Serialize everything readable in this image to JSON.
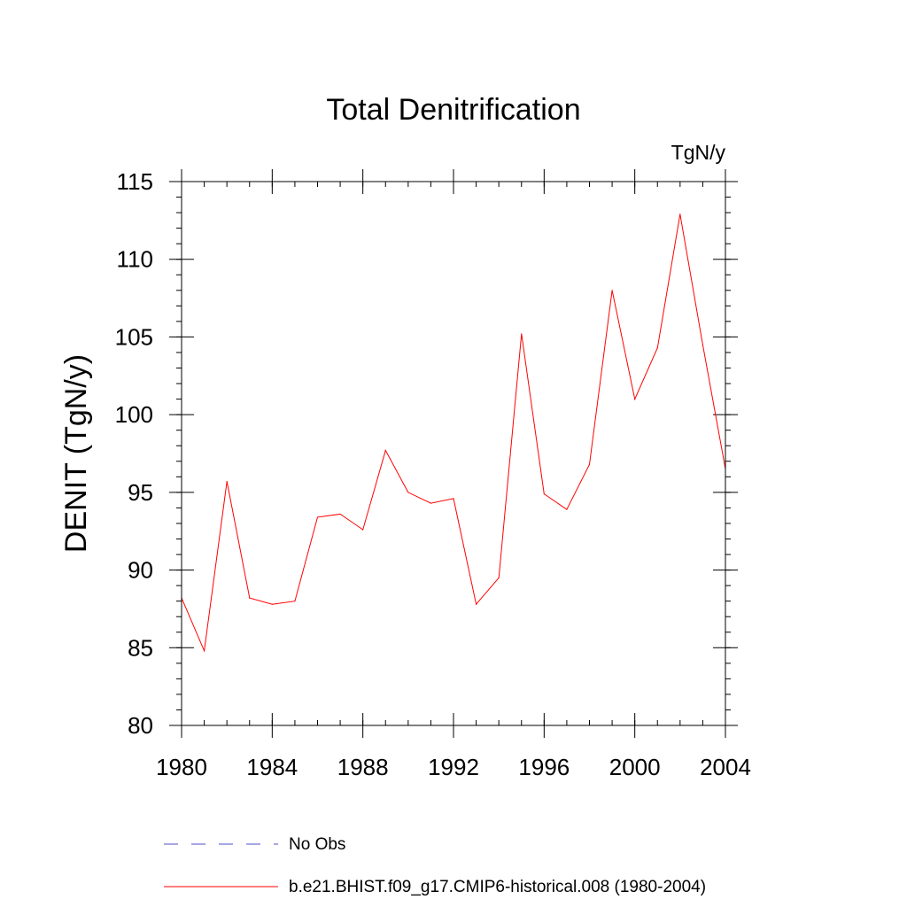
{
  "chart_data": {
    "type": "line",
    "title": "Total Denitrification",
    "units": "TgN/y",
    "ylabel": "DENIT  (TgN/y)",
    "xlabel": "",
    "xlim": [
      1980,
      2004
    ],
    "ylim": [
      80,
      115
    ],
    "x_ticks": [
      "1980",
      "1984",
      "1988",
      "1992",
      "1996",
      "2000",
      "2004"
    ],
    "y_ticks": [
      "80",
      "85",
      "90",
      "95",
      "100",
      "105",
      "110",
      "115"
    ],
    "x": [
      1980,
      1981,
      1982,
      1983,
      1984,
      1985,
      1986,
      1987,
      1988,
      1989,
      1990,
      1991,
      1992,
      1993,
      1994,
      1995,
      1996,
      1997,
      1998,
      1999,
      2000,
      2001,
      2002,
      2003,
      2004
    ],
    "series": [
      {
        "name": "b.e21.BHIST.f09_g17.CMIP6-historical.008 (1980-2004)",
        "color": "#ff0000",
        "style": "solid",
        "values": [
          88.2,
          84.8,
          95.7,
          88.2,
          87.8,
          88.0,
          93.4,
          93.6,
          92.6,
          97.7,
          95.0,
          94.3,
          94.6,
          87.8,
          89.5,
          105.2,
          94.9,
          93.9,
          96.8,
          108.0,
          101.0,
          104.3,
          112.9,
          104.5,
          96.5
        ]
      }
    ],
    "legend": [
      {
        "label": "No Obs",
        "color": "#5050c8",
        "style": "dashed"
      },
      {
        "label": "b.e21.BHIST.f09_g17.CMIP6-historical.008 (1980-2004)",
        "color": "#ff0000",
        "style": "solid"
      }
    ],
    "legend_position": "bottom",
    "grid": false
  }
}
